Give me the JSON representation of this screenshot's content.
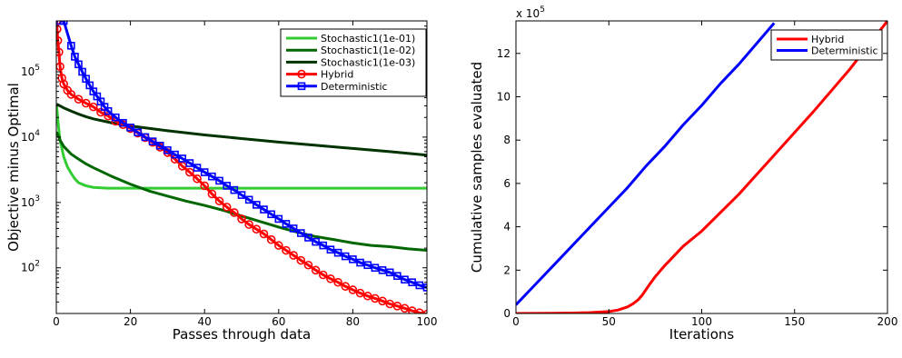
{
  "chart_data": [
    {
      "type": "line",
      "xlabel": "Passes through data",
      "ylabel": "Objective minus Optimal",
      "xlim": [
        0,
        100
      ],
      "ylim": [
        20,
        600000
      ],
      "yscale": "log",
      "xticks": [
        0,
        20,
        40,
        60,
        80,
        100
      ],
      "yticks": [
        {
          "value": 100,
          "base": "10",
          "exp": "2"
        },
        {
          "value": 1000,
          "base": "10",
          "exp": "3"
        },
        {
          "value": 10000,
          "base": "10",
          "exp": "4"
        },
        {
          "value": 100000,
          "base": "10",
          "exp": "5"
        }
      ],
      "grid": false,
      "legend_position": "top-right",
      "series": [
        {
          "name": "Stochastic1(1e-01)",
          "color": "#33cc33",
          "marker": "none",
          "points": [
            [
              0.1,
              30000
            ],
            [
              0.5,
              16000
            ],
            [
              1,
              9000
            ],
            [
              2,
              5000
            ],
            [
              3,
              3500
            ],
            [
              4,
              2800
            ],
            [
              5,
              2300
            ],
            [
              6,
              2000
            ],
            [
              8,
              1800
            ],
            [
              10,
              1700
            ],
            [
              14,
              1650
            ],
            [
              20,
              1650
            ],
            [
              30,
              1650
            ],
            [
              40,
              1650
            ],
            [
              50,
              1650
            ],
            [
              60,
              1650
            ],
            [
              70,
              1650
            ],
            [
              80,
              1650
            ],
            [
              90,
              1650
            ],
            [
              100,
              1650
            ]
          ]
        },
        {
          "name": "Stochastic1(1e-02)",
          "color": "#006600",
          "marker": "none",
          "points": [
            [
              0.1,
              12000
            ],
            [
              1,
              9000
            ],
            [
              2,
              7200
            ],
            [
              4,
              5500
            ],
            [
              6,
              4600
            ],
            [
              8,
              3900
            ],
            [
              10,
              3400
            ],
            [
              15,
              2500
            ],
            [
              20,
              1900
            ],
            [
              25,
              1500
            ],
            [
              30,
              1250
            ],
            [
              35,
              1050
            ],
            [
              40,
              900
            ],
            [
              45,
              760
            ],
            [
              50,
              620
            ],
            [
              55,
              510
            ],
            [
              60,
              420
            ],
            [
              65,
              350
            ],
            [
              70,
              300
            ],
            [
              75,
              270
            ],
            [
              80,
              240
            ],
            [
              85,
              220
            ],
            [
              90,
              210
            ],
            [
              95,
              195
            ],
            [
              100,
              185
            ]
          ]
        },
        {
          "name": "Stochastic1(1e-03)",
          "color": "#003300",
          "marker": "none",
          "points": [
            [
              0.1,
              32000
            ],
            [
              1,
              30000
            ],
            [
              2,
              28000
            ],
            [
              4,
              25000
            ],
            [
              6,
              22500
            ],
            [
              8,
              20500
            ],
            [
              10,
              19000
            ],
            [
              15,
              16500
            ],
            [
              20,
              14800
            ],
            [
              30,
              12500
            ],
            [
              40,
              10800
            ],
            [
              50,
              9500
            ],
            [
              60,
              8400
            ],
            [
              70,
              7500
            ],
            [
              80,
              6700
            ],
            [
              90,
              6000
            ],
            [
              100,
              5300
            ]
          ]
        },
        {
          "name": "Hybrid",
          "color": "#ff0000",
          "marker": "circle",
          "points": [
            [
              0.1,
              600000
            ],
            [
              0.2,
              450000
            ],
            [
              0.4,
              300000
            ],
            [
              0.7,
              200000
            ],
            [
              1,
              120000
            ],
            [
              1.5,
              80000
            ],
            [
              2,
              65000
            ],
            [
              3,
              52000
            ],
            [
              4,
              45000
            ],
            [
              6,
              38000
            ],
            [
              8,
              33000
            ],
            [
              10,
              29000
            ],
            [
              12,
              24000
            ],
            [
              14,
              21000
            ],
            [
              16,
              17500
            ],
            [
              18,
              15500
            ],
            [
              20,
              13500
            ],
            [
              22,
              11500
            ],
            [
              24,
              9800
            ],
            [
              26,
              8300
            ],
            [
              28,
              7000
            ],
            [
              30,
              5800
            ],
            [
              32,
              4600
            ],
            [
              34,
              3600
            ],
            [
              36,
              2900
            ],
            [
              38,
              2300
            ],
            [
              40,
              1800
            ],
            [
              42,
              1350
            ],
            [
              44,
              1050
            ],
            [
              46,
              850
            ],
            [
              48,
              700
            ],
            [
              50,
              560
            ],
            [
              52,
              460
            ],
            [
              54,
              390
            ],
            [
              56,
              330
            ],
            [
              58,
              270
            ],
            [
              60,
              220
            ],
            [
              62,
              185
            ],
            [
              64,
              155
            ],
            [
              66,
              130
            ],
            [
              68,
              110
            ],
            [
              70,
              92
            ],
            [
              72,
              78
            ],
            [
              74,
              68
            ],
            [
              76,
              60
            ],
            [
              78,
              52
            ],
            [
              80,
              46
            ],
            [
              82,
              41
            ],
            [
              84,
              37
            ],
            [
              86,
              34
            ],
            [
              88,
              31
            ],
            [
              90,
              28
            ],
            [
              92,
              26
            ],
            [
              94,
              24
            ],
            [
              96,
              22
            ],
            [
              98,
              20.5
            ],
            [
              100,
              19.5
            ]
          ]
        },
        {
          "name": "Deterministic",
          "color": "#0000ff",
          "marker": "square",
          "points": [
            [
              1,
              600000
            ],
            [
              2,
              600000
            ],
            [
              4,
              250000
            ],
            [
              5,
              170000
            ],
            [
              6,
              130000
            ],
            [
              7,
              100000
            ],
            [
              8,
              78000
            ],
            [
              9,
              62000
            ],
            [
              10,
              50000
            ],
            [
              11,
              42000
            ],
            [
              12,
              35000
            ],
            [
              13,
              29000
            ],
            [
              14,
              25000
            ],
            [
              16,
              20000
            ],
            [
              18,
              16500
            ],
            [
              20,
              14000
            ],
            [
              22,
              11800
            ],
            [
              24,
              10000
            ],
            [
              26,
              8600
            ],
            [
              28,
              7400
            ],
            [
              30,
              6300
            ],
            [
              32,
              5400
            ],
            [
              34,
              4700
            ],
            [
              36,
              4000
            ],
            [
              38,
              3400
            ],
            [
              40,
              2900
            ],
            [
              42,
              2500
            ],
            [
              44,
              2150
            ],
            [
              46,
              1800
            ],
            [
              48,
              1550
            ],
            [
              50,
              1300
            ],
            [
              52,
              1100
            ],
            [
              54,
              920
            ],
            [
              56,
              780
            ],
            [
              58,
              660
            ],
            [
              60,
              560
            ],
            [
              62,
              470
            ],
            [
              64,
              400
            ],
            [
              66,
              340
            ],
            [
              68,
              290
            ],
            [
              70,
              250
            ],
            [
              72,
              220
            ],
            [
              74,
              190
            ],
            [
              76,
              170
            ],
            [
              78,
              150
            ],
            [
              80,
              135
            ],
            [
              82,
              120
            ],
            [
              84,
              110
            ],
            [
              86,
              100
            ],
            [
              88,
              92
            ],
            [
              90,
              85
            ],
            [
              92,
              75
            ],
            [
              94,
              66
            ],
            [
              96,
              60
            ],
            [
              98,
              54
            ],
            [
              100,
              50
            ]
          ]
        }
      ]
    },
    {
      "type": "line",
      "xlabel": "Iterations",
      "ylabel": "Cumulative samples evaluated",
      "xlim": [
        0,
        200
      ],
      "ylim": [
        0,
        13.5
      ],
      "yscale_label": {
        "base": "x 10",
        "exp": "5"
      },
      "xticks": [
        0,
        50,
        100,
        150,
        200
      ],
      "yticks": [
        0,
        2,
        4,
        6,
        8,
        10,
        12
      ],
      "grid": false,
      "legend_position": "top-right",
      "series": [
        {
          "name": "Hybrid",
          "color": "#ff0000",
          "points": [
            [
              0,
              0
            ],
            [
              20,
              0.01
            ],
            [
              30,
              0.02
            ],
            [
              40,
              0.04
            ],
            [
              50,
              0.09
            ],
            [
              55,
              0.16
            ],
            [
              60,
              0.3
            ],
            [
              63,
              0.45
            ],
            [
              66,
              0.65
            ],
            [
              68,
              0.85
            ],
            [
              70,
              1.1
            ],
            [
              72,
              1.35
            ],
            [
              75,
              1.7
            ],
            [
              80,
              2.2
            ],
            [
              90,
              3.1
            ],
            [
              100,
              3.8
            ],
            [
              120,
              5.5
            ],
            [
              140,
              7.4
            ],
            [
              160,
              9.3
            ],
            [
              180,
              11.3
            ],
            [
              200,
              13.5
            ]
          ]
        },
        {
          "name": "Deterministic",
          "color": "#0000ff",
          "points": [
            [
              0,
              0.4
            ],
            [
              10,
              1.3
            ],
            [
              20,
              2.2
            ],
            [
              30,
              3.1
            ],
            [
              40,
              4.0
            ],
            [
              50,
              4.9
            ],
            [
              60,
              5.8
            ],
            [
              70,
              6.8
            ],
            [
              80,
              7.7
            ],
            [
              90,
              8.7
            ],
            [
              100,
              9.6
            ],
            [
              110,
              10.6
            ],
            [
              120,
              11.5
            ],
            [
              130,
              12.5
            ],
            [
              139,
              13.4
            ]
          ]
        }
      ]
    }
  ]
}
